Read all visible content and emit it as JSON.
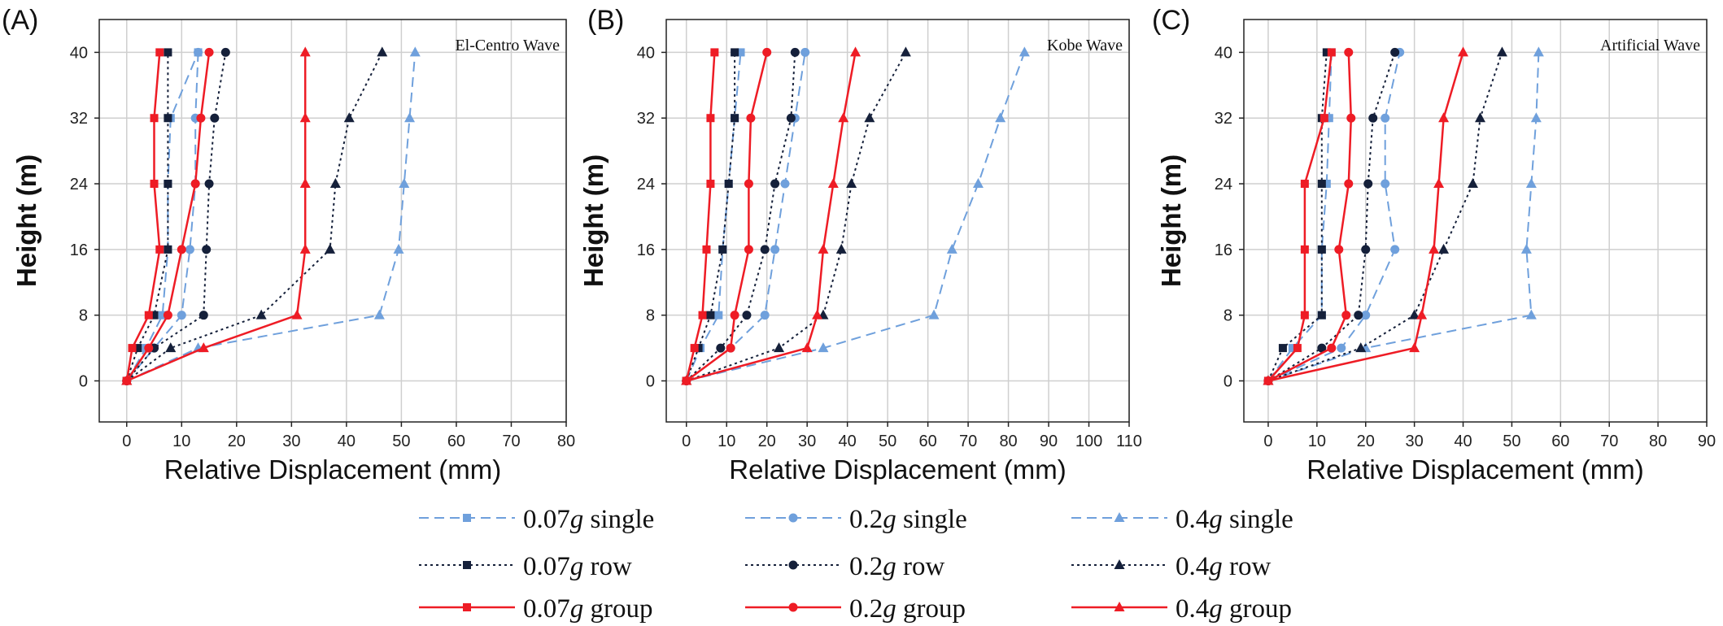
{
  "chart_data": [
    {
      "type": "line",
      "panel": "(A)",
      "title": "El-Centro Wave",
      "xlabel": "Relative Displacement (mm)",
      "ylabel": "Height (m)",
      "xlim": [
        -5,
        80
      ],
      "ylim": [
        -5,
        44
      ],
      "xticks": [
        0,
        10,
        20,
        30,
        40,
        50,
        60,
        70,
        80
      ],
      "yticks": [
        0,
        8,
        16,
        24,
        32,
        40
      ],
      "grid": true,
      "y": [
        0,
        4,
        8,
        16,
        24,
        32,
        40
      ],
      "series": [
        {
          "name": "0.07g single",
          "x": [
            0,
            3.5,
            6.5,
            7.5,
            7.5,
            8,
            13
          ]
        },
        {
          "name": "0.2g single",
          "x": [
            0,
            5,
            10,
            11.5,
            12.5,
            12.5,
            13
          ]
        },
        {
          "name": "0.4g single",
          "x": [
            0,
            13,
            46,
            49.5,
            50.5,
            51.5,
            52.5
          ]
        },
        {
          "name": "0.07g row",
          "x": [
            0,
            2,
            5,
            7.5,
            7.5,
            7.5,
            7.5
          ]
        },
        {
          "name": "0.2g row",
          "x": [
            0,
            5,
            14,
            14.5,
            15,
            16,
            18
          ]
        },
        {
          "name": "0.4g row",
          "x": [
            0,
            8,
            24.5,
            37,
            38,
            40.5,
            46.5
          ]
        },
        {
          "name": "0.07g group",
          "x": [
            0,
            1,
            4,
            6,
            5,
            5,
            6
          ]
        },
        {
          "name": "0.2g group",
          "x": [
            0,
            4,
            7.5,
            10,
            12.5,
            13.5,
            15
          ]
        },
        {
          "name": "0.4g group",
          "x": [
            0,
            14,
            31,
            32.5,
            32.5,
            32.5,
            32.5
          ]
        }
      ]
    },
    {
      "type": "line",
      "panel": "(B)",
      "title": "Kobe Wave",
      "xlabel": "Relative Displacement (mm)",
      "ylabel": "Height (m)",
      "xlim": [
        -5,
        110
      ],
      "ylim": [
        -5,
        44
      ],
      "xticks": [
        0,
        10,
        20,
        30,
        40,
        50,
        60,
        70,
        80,
        90,
        100,
        110
      ],
      "yticks": [
        0,
        8,
        16,
        24,
        32,
        40
      ],
      "grid": true,
      "y": [
        0,
        4,
        8,
        16,
        24,
        32,
        40
      ],
      "series": [
        {
          "name": "0.07g single",
          "x": [
            0,
            3.5,
            8,
            9,
            10.5,
            12,
            13.5
          ]
        },
        {
          "name": "0.2g single",
          "x": [
            0,
            11,
            19.5,
            22,
            24.5,
            27,
            29.5
          ]
        },
        {
          "name": "0.4g single",
          "x": [
            0,
            34,
            61.5,
            66,
            72.5,
            78,
            84
          ]
        },
        {
          "name": "0.07g row",
          "x": [
            0,
            3,
            6,
            9,
            10.5,
            12,
            12
          ]
        },
        {
          "name": "0.2g row",
          "x": [
            0,
            8.5,
            15,
            19.5,
            22,
            26,
            27
          ]
        },
        {
          "name": "0.4g row",
          "x": [
            0,
            23,
            34,
            38.5,
            41,
            45.5,
            54.5
          ]
        },
        {
          "name": "0.07g group",
          "x": [
            0,
            2,
            4,
            5,
            6,
            6,
            7
          ]
        },
        {
          "name": "0.2g group",
          "x": [
            0,
            11,
            12,
            15.5,
            15.5,
            16,
            20
          ]
        },
        {
          "name": "0.4g group",
          "x": [
            0,
            30,
            32.5,
            34,
            36.5,
            39,
            42
          ]
        }
      ]
    },
    {
      "type": "line",
      "panel": "(C)",
      "title": "Artificial Wave",
      "xlabel": "Relative Displacement (mm)",
      "ylabel": "Height (m)",
      "xlim": [
        -5,
        90
      ],
      "ylim": [
        -5,
        44
      ],
      "xticks": [
        0,
        10,
        20,
        30,
        40,
        50,
        60,
        70,
        80,
        90
      ],
      "yticks": [
        0,
        8,
        16,
        24,
        32,
        40
      ],
      "grid": true,
      "y": [
        0,
        4,
        8,
        16,
        24,
        32,
        40
      ],
      "series": [
        {
          "name": "0.07g single",
          "x": [
            0,
            5,
            11,
            11,
            12,
            12.5,
            13
          ]
        },
        {
          "name": "0.2g single",
          "x": [
            0,
            15,
            20,
            26,
            24,
            24,
            27
          ]
        },
        {
          "name": "0.4g single",
          "x": [
            0,
            20,
            54,
            53,
            54,
            55,
            55.5
          ]
        },
        {
          "name": "0.07g row",
          "x": [
            0,
            3,
            11,
            11,
            11,
            11,
            12
          ]
        },
        {
          "name": "0.2g row",
          "x": [
            0,
            11,
            18.5,
            20,
            20.5,
            21.5,
            26
          ]
        },
        {
          "name": "0.4g row",
          "x": [
            0,
            19,
            30,
            36,
            42,
            43.5,
            48
          ]
        },
        {
          "name": "0.07g group",
          "x": [
            0,
            6,
            7.5,
            7.5,
            7.5,
            11.5,
            13
          ]
        },
        {
          "name": "0.2g group",
          "x": [
            0,
            13,
            16,
            14.5,
            16.5,
            17,
            16.5
          ]
        },
        {
          "name": "0.4g group",
          "x": [
            0,
            30,
            31.5,
            34,
            35,
            36,
            40
          ]
        }
      ]
    }
  ],
  "series_styles": [
    {
      "name": "0.07g single",
      "color": "#6fa0dc",
      "dash": "dashed",
      "marker": "square"
    },
    {
      "name": "0.2g single",
      "color": "#6fa0dc",
      "dash": "dashed",
      "marker": "circle"
    },
    {
      "name": "0.4g single",
      "color": "#6fa0dc",
      "dash": "dashed",
      "marker": "triangle"
    },
    {
      "name": "0.07g row",
      "color": "#15203a",
      "dash": "dotted",
      "marker": "square"
    },
    {
      "name": "0.2g row",
      "color": "#15203a",
      "dash": "dotted",
      "marker": "circle"
    },
    {
      "name": "0.4g row",
      "color": "#15203a",
      "dash": "dotted",
      "marker": "triangle"
    },
    {
      "name": "0.07g group",
      "color": "#ee1c25",
      "dash": "solid",
      "marker": "square"
    },
    {
      "name": "0.2g group",
      "color": "#ee1c25",
      "dash": "solid",
      "marker": "circle"
    },
    {
      "name": "0.4g group",
      "color": "#ee1c25",
      "dash": "solid",
      "marker": "triangle"
    }
  ],
  "legend": {
    "items": [
      {
        "level": "0.07",
        "unit": "g",
        "kind": "single"
      },
      {
        "level": "0.2",
        "unit": "g",
        "kind": "single"
      },
      {
        "level": "0.4",
        "unit": "g",
        "kind": "single"
      },
      {
        "level": "0.07",
        "unit": "g",
        "kind": "row"
      },
      {
        "level": "0.2",
        "unit": "g",
        "kind": "row"
      },
      {
        "level": "0.4",
        "unit": "g",
        "kind": "row"
      },
      {
        "level": "0.07",
        "unit": "g",
        "kind": "group"
      },
      {
        "level": "0.2",
        "unit": "g",
        "kind": "group"
      },
      {
        "level": "0.4",
        "unit": "g",
        "kind": "group"
      }
    ]
  }
}
